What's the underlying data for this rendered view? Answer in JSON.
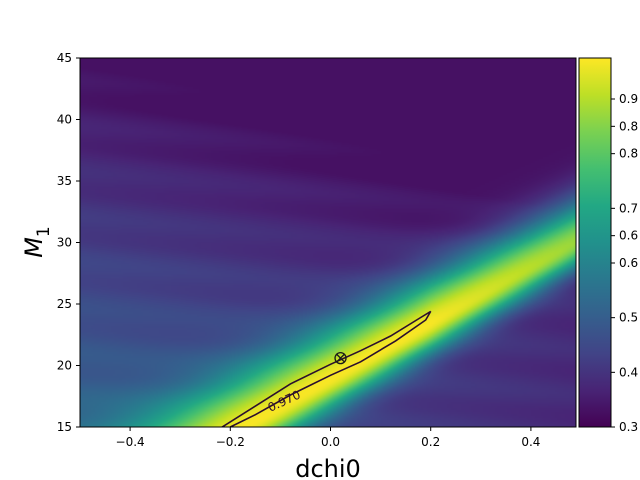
{
  "chart_data": {
    "type": "heatmap",
    "title": "",
    "xlabel": "dchi0",
    "ylabel": "M",
    "ylabel_subscript": "1",
    "xlim": [
      -0.5,
      0.49
    ],
    "ylim": [
      15,
      45
    ],
    "x_ticks": [
      "−0.4",
      "−0.2",
      "0.0",
      "0.2",
      "0.4"
    ],
    "x_tick_values": [
      -0.4,
      -0.2,
      0.0,
      0.2,
      0.4
    ],
    "y_ticks": [
      "15",
      "20",
      "25",
      "30",
      "35",
      "40",
      "45"
    ],
    "y_tick_values": [
      15,
      20,
      25,
      30,
      35,
      40,
      45
    ],
    "colorbar": {
      "colormap": "viridis",
      "range": [
        0.3,
        0.975
      ],
      "ticks": [
        "0.3",
        "0.4",
        "0.5",
        "0.6",
        "0.6",
        "0.7",
        "0.8",
        "0.8",
        "0.9"
      ],
      "tick_values": [
        0.3,
        0.4,
        0.5,
        0.6,
        0.65,
        0.7,
        0.8,
        0.85,
        0.9
      ]
    },
    "ridge": {
      "x": [
        -0.5,
        0.49
      ],
      "y": [
        7.5,
        30.0
      ]
    },
    "contour": {
      "level_label": "0.970",
      "points": [
        [
          -0.22,
          14.9
        ],
        [
          -0.15,
          16.7
        ],
        [
          -0.08,
          18.5
        ],
        [
          0.0,
          20.1
        ],
        [
          0.06,
          21.2
        ],
        [
          0.12,
          22.4
        ],
        [
          0.18,
          23.9
        ],
        [
          0.2,
          24.4
        ],
        [
          0.19,
          23.7
        ],
        [
          0.13,
          22.0
        ],
        [
          0.06,
          20.3
        ],
        [
          0.0,
          19.2
        ],
        [
          -0.08,
          17.6
        ],
        [
          -0.15,
          16.0
        ],
        [
          -0.2,
          15.0
        ]
      ]
    },
    "injection_marker": {
      "x": 0.02,
      "y": 20.6
    }
  }
}
